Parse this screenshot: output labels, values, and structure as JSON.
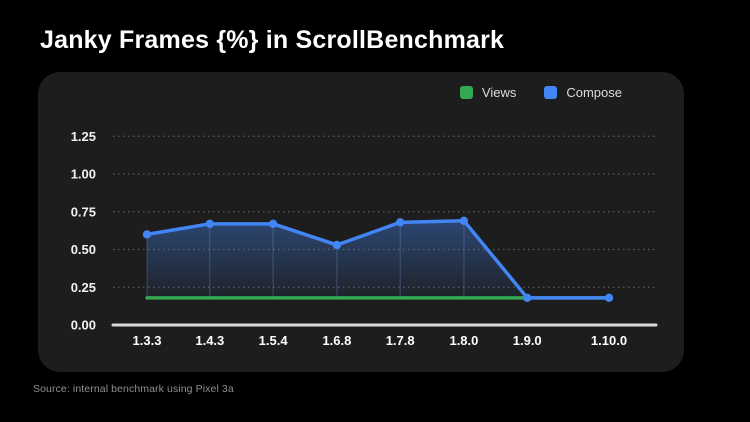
{
  "page": {
    "title": "Janky Frames {%} in ScrollBenchmark",
    "source_note": "Source: internal benchmark using Pixel 3a"
  },
  "colors": {
    "background": "#000000",
    "card": "#1d1d1d",
    "title_text": "#ffffff",
    "axis_line": "#d9d9d9",
    "gridline": "#5c5c5c",
    "tick_label": "#f2f2f2",
    "views_green": "#34a853",
    "compose_blue": "#4285f4",
    "legend_text": "#dcdce0",
    "source_text": "#8f8f8f",
    "area_fill_top": "rgba(66,133,244,0.40)",
    "area_fill_bottom": "rgba(66,133,244,0.05)",
    "dropline": "rgba(140,175,255,0.28)"
  },
  "chart_data": {
    "type": "line",
    "title": "Janky Frames {%} in ScrollBenchmark",
    "categories": [
      "1.3.3",
      "1.4.3",
      "1.5.4",
      "1.6.8",
      "1.7.8",
      "1.8.0",
      "1.9.0",
      "1.10.0"
    ],
    "series": [
      {
        "name": "Views",
        "color": "#34a853",
        "values": [
          0.18,
          0.18,
          0.18,
          0.18,
          0.18,
          0.18,
          0.18,
          0.18
        ],
        "markers": false
      },
      {
        "name": "Compose",
        "color": "#4285f4",
        "values": [
          0.6,
          0.67,
          0.67,
          0.53,
          0.68,
          0.69,
          0.18,
          0.18
        ],
        "markers": true
      }
    ],
    "xlabel": "",
    "ylabel": "",
    "ylim": [
      0,
      1.25
    ],
    "yticks": [
      0,
      0.25,
      0.5,
      0.75,
      1.0,
      1.25
    ],
    "ytick_labels": [
      "0.00",
      "0.25",
      "0.50",
      "0.75",
      "1.00",
      "1.25"
    ],
    "grid": "horizontal-dotted",
    "legend_position": "top-right",
    "area_fill_between": [
      "Compose",
      "Views"
    ],
    "marker": "circle"
  }
}
